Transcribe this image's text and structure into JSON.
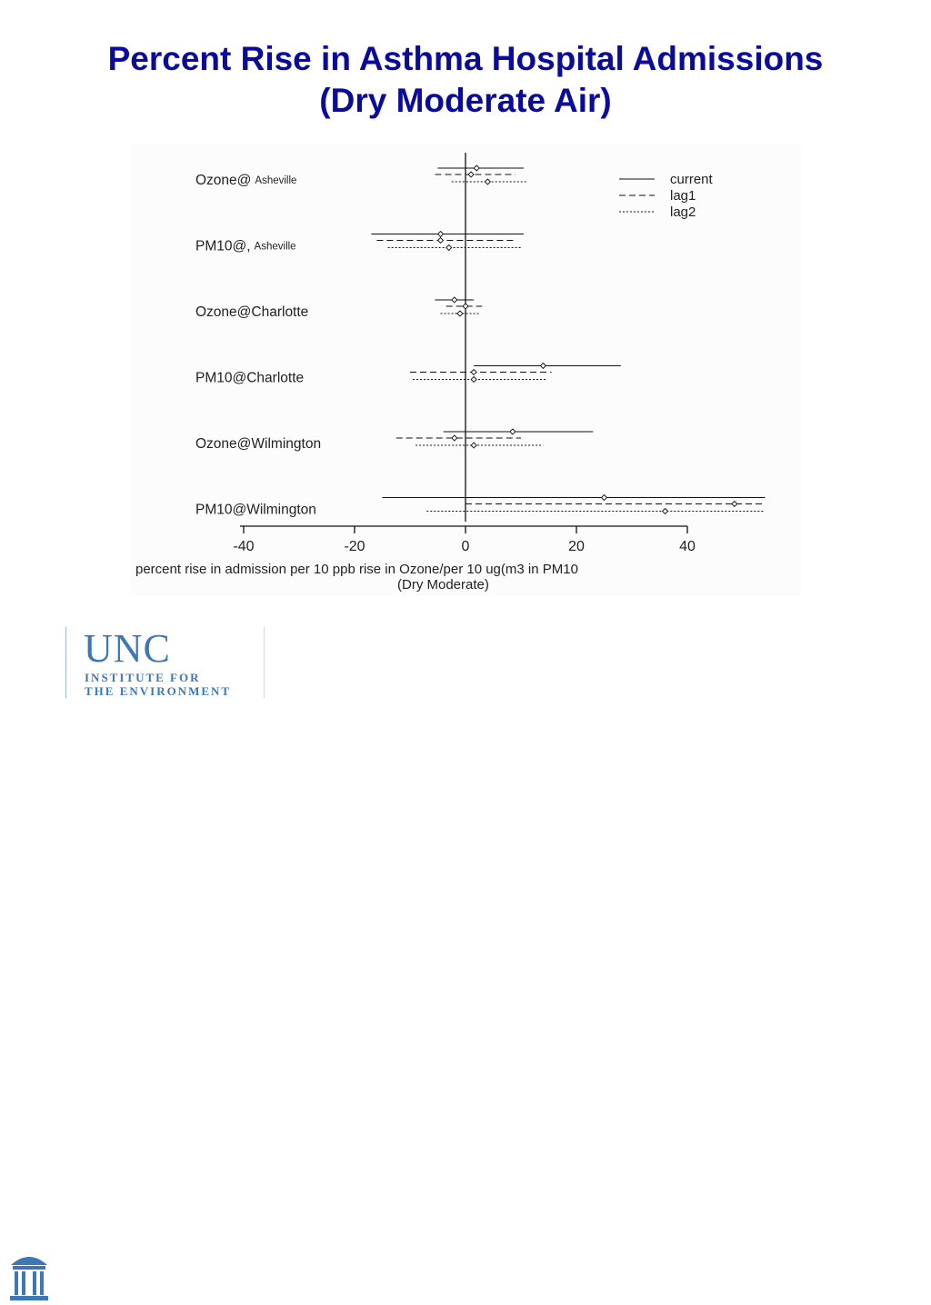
{
  "slide": {
    "title_line1": "Percent Rise in Asthma Hospital Admissions",
    "title_line2": "(Dry Moderate Air)"
  },
  "chart_data": {
    "type": "forest",
    "xlabel_line1": "percent rise in admission per 10 ppb rise in Ozone/per 10 ug(m3  in PM10",
    "xlabel_line2": "(Dry Moderate)",
    "xlim": [
      -40,
      40
    ],
    "xticks": [
      -40,
      -20,
      0,
      20,
      40
    ],
    "xtick_labels": [
      "-40",
      "-20",
      "0",
      "20",
      "40"
    ],
    "legend_position": "top-right",
    "legend": [
      {
        "name": "current",
        "style": "solid"
      },
      {
        "name": "lag1",
        "style": "dashed"
      },
      {
        "name": "lag2",
        "style": "dotted"
      }
    ],
    "rows": [
      {
        "label": "Ozone@",
        "label_small": "Asheville",
        "estimates": [
          {
            "lag": "current",
            "est": 2,
            "lo": -5,
            "hi": 10.5
          },
          {
            "lag": "lag1",
            "est": 1,
            "lo": -5.5,
            "hi": 9
          },
          {
            "lag": "lag2",
            "est": 4,
            "lo": -2.5,
            "hi": 11
          }
        ]
      },
      {
        "label": "PM10@,",
        "label_small": "Asheville",
        "estimates": [
          {
            "lag": "current",
            "est": -4.5,
            "lo": -17,
            "hi": 10.5
          },
          {
            "lag": "lag1",
            "est": -4.5,
            "lo": -16,
            "hi": 9
          },
          {
            "lag": "lag2",
            "est": -3,
            "lo": -14,
            "hi": 10
          }
        ]
      },
      {
        "label": "Ozone@Charlotte",
        "label_small": "",
        "estimates": [
          {
            "lag": "current",
            "est": -2,
            "lo": -5.5,
            "hi": 1.5
          },
          {
            "lag": "lag1",
            "est": 0,
            "lo": -3.5,
            "hi": 3
          },
          {
            "lag": "lag2",
            "est": -1,
            "lo": -4.5,
            "hi": 2.5
          }
        ]
      },
      {
        "label": "PM10@Charlotte",
        "label_small": "",
        "estimates": [
          {
            "lag": "current",
            "est": 14,
            "lo": 1.5,
            "hi": 28
          },
          {
            "lag": "lag1",
            "est": 1.5,
            "lo": -10,
            "hi": 15.5
          },
          {
            "lag": "lag2",
            "est": 1.5,
            "lo": -9.5,
            "hi": 14.5
          }
        ]
      },
      {
        "label": "Ozone@Wilmington",
        "label_small": "",
        "estimates": [
          {
            "lag": "current",
            "est": 8.5,
            "lo": -4,
            "hi": 23
          },
          {
            "lag": "lag1",
            "est": -2,
            "lo": -12.5,
            "hi": 10
          }
        ]
      },
      {
        "label": "PM10@Wilmington",
        "label_small": "",
        "estimates": [
          {
            "lag": "current",
            "est": 25,
            "lo": -15,
            "hi": 54
          },
          {
            "lag": "lag1",
            "est": 48.5,
            "lo": 0,
            "hi": 54
          },
          {
            "lag": "lag2",
            "est": 36,
            "lo": -7,
            "hi": 54
          }
        ]
      }
    ],
    "extra_marks": [
      {
        "row": 4,
        "lag": "lag2",
        "est": 1.5,
        "lo": -9,
        "hi": 14
      }
    ]
  },
  "logo": {
    "wordmark": "UNC",
    "line1": "INSTITUTE FOR",
    "line2": "THE ENVIRONMENT",
    "accent_color": "#3d78b5"
  }
}
